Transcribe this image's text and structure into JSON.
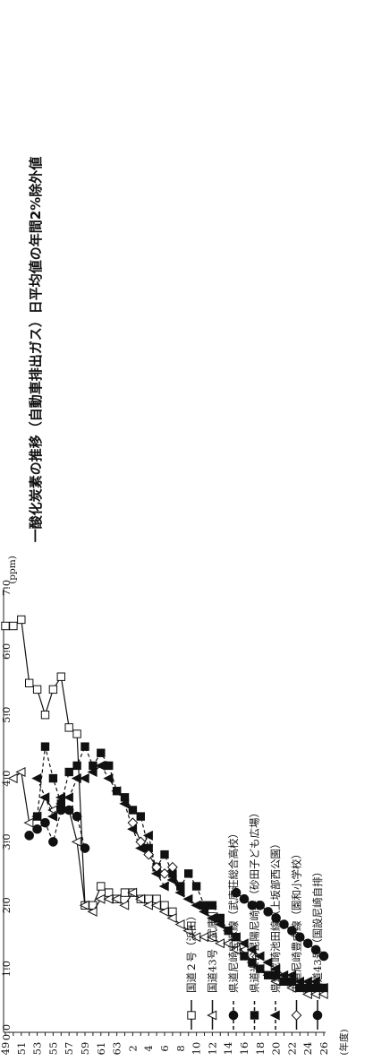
{
  "chart_data": {
    "type": "line",
    "title": "一酸化炭素の推移（自動車排出ガス）日平均値の年間2%除外値",
    "ylabel": "(ppm)",
    "xlabel": "(年度)",
    "ylim": [
      0,
      7
    ],
    "yticks": [
      "0.0",
      "1.0",
      "2.0",
      "3.0",
      "4.0",
      "5.0",
      "6.0",
      "7.0"
    ],
    "x_categories": [
      "49",
      "50",
      "51",
      "52",
      "53",
      "54",
      "55",
      "56",
      "57",
      "58",
      "59",
      "60",
      "61",
      "62",
      "63",
      "1",
      "2",
      "3",
      "4",
      "5",
      "6",
      "7",
      "8",
      "9",
      "10",
      "11",
      "12",
      "13",
      "14",
      "15",
      "16",
      "17",
      "18",
      "19",
      "20",
      "21",
      "22",
      "23",
      "24",
      "25",
      "26"
    ],
    "x_tick_labels": [
      "49",
      "51",
      "53",
      "55",
      "57",
      "59",
      "61",
      "63",
      "2",
      "4",
      "6",
      "8",
      "10",
      "12",
      "14",
      "16",
      "18",
      "20",
      "22",
      "24",
      "26"
    ],
    "grid": false,
    "legend_position": "right",
    "series": [
      {
        "name": "国道２号（浜田）",
        "marker": "square-open",
        "dash": false,
        "points": [
          [
            0,
            6.4
          ],
          [
            1,
            6.4
          ],
          [
            2,
            6.5
          ],
          [
            3,
            5.5
          ],
          [
            4,
            5.4
          ],
          [
            5,
            5.0
          ],
          [
            6,
            5.4
          ],
          [
            7,
            5.6
          ],
          [
            8,
            4.8
          ],
          [
            9,
            4.7
          ],
          [
            10,
            2.0
          ],
          [
            11,
            2.0
          ],
          [
            12,
            2.3
          ],
          [
            13,
            2.2
          ],
          [
            14,
            2.1
          ],
          [
            15,
            2.2
          ],
          [
            16,
            2.2
          ],
          [
            17,
            2.1
          ],
          [
            18,
            2.1
          ],
          [
            19,
            2.1
          ],
          [
            20,
            2.0
          ],
          [
            21,
            1.9
          ]
        ]
      },
      {
        "name": "国道43号（武庫川）",
        "marker": "triangle-open",
        "dash": false,
        "points": [
          [
            1,
            4.0
          ],
          [
            2,
            4.1
          ],
          [
            3,
            3.3
          ],
          [
            4,
            3.4
          ],
          [
            5,
            3.7
          ],
          [
            6,
            3.5
          ],
          [
            7,
            3.6
          ],
          [
            8,
            3.5
          ],
          [
            9,
            3.0
          ],
          [
            10,
            2.0
          ],
          [
            11,
            1.9
          ],
          [
            12,
            2.1
          ],
          [
            13,
            2.1
          ],
          [
            14,
            2.1
          ],
          [
            15,
            2.0
          ],
          [
            16,
            2.2
          ],
          [
            17,
            2.1
          ],
          [
            18,
            2.0
          ],
          [
            19,
            2.0
          ],
          [
            20,
            1.9
          ],
          [
            21,
            1.8
          ],
          [
            22,
            1.7
          ],
          [
            23,
            1.6
          ],
          [
            24,
            1.5
          ],
          [
            25,
            1.5
          ],
          [
            26,
            1.5
          ],
          [
            27,
            1.4
          ],
          [
            28,
            1.4
          ],
          [
            29,
            1.3
          ],
          [
            30,
            1.3
          ],
          [
            31,
            1.1
          ],
          [
            32,
            1.0
          ],
          [
            33,
            0.9
          ],
          [
            34,
            0.8
          ],
          [
            35,
            0.8
          ],
          [
            36,
            0.7
          ],
          [
            37,
            0.7
          ],
          [
            38,
            0.6
          ],
          [
            39,
            0.6
          ],
          [
            40,
            0.6
          ]
        ]
      },
      {
        "name": "県道尼崎宝塚線（武庫荘総合高校）",
        "marker": "circle-filled",
        "dash": true,
        "points": [
          [
            3,
            3.1
          ],
          [
            4,
            3.2
          ],
          [
            5,
            3.3
          ],
          [
            6,
            3.0
          ],
          [
            7,
            3.5
          ],
          [
            8,
            3.5
          ],
          [
            9,
            3.4
          ],
          [
            10,
            2.9
          ]
        ]
      },
      {
        "name": "県道米谷昆陽尼崎線（砂田子ども広場）",
        "marker": "square-filled",
        "dash": true,
        "points": [
          [
            4,
            3.4
          ],
          [
            5,
            4.5
          ],
          [
            6,
            4.0
          ],
          [
            7,
            3.6
          ],
          [
            8,
            4.1
          ],
          [
            9,
            4.2
          ],
          [
            10,
            4.5
          ],
          [
            11,
            4.2
          ],
          [
            12,
            4.4
          ],
          [
            13,
            4.2
          ],
          [
            14,
            3.8
          ],
          [
            15,
            3.7
          ],
          [
            16,
            3.5
          ],
          [
            17,
            3.4
          ],
          [
            18,
            2.9
          ],
          [
            19,
            2.6
          ],
          [
            20,
            2.8
          ],
          [
            21,
            2.5
          ],
          [
            22,
            2.3
          ],
          [
            23,
            2.5
          ],
          [
            24,
            2.3
          ],
          [
            25,
            2.0
          ],
          [
            26,
            2.0
          ],
          [
            27,
            1.8
          ],
          [
            28,
            1.6
          ],
          [
            29,
            1.5
          ],
          [
            30,
            1.2
          ],
          [
            31,
            1.1
          ],
          [
            32,
            1.0
          ],
          [
            33,
            0.9
          ],
          [
            34,
            0.9
          ],
          [
            35,
            0.8
          ],
          [
            36,
            0.8
          ],
          [
            37,
            0.7
          ],
          [
            38,
            0.7
          ],
          [
            39,
            0.7
          ],
          [
            40,
            0.7
          ]
        ]
      },
      {
        "name": "県道尼崎池田線（上坂部西公園）",
        "marker": "triangle-filled",
        "dash": true,
        "points": [
          [
            4,
            4.0
          ],
          [
            5,
            3.7
          ],
          [
            6,
            3.4
          ],
          [
            7,
            3.7
          ],
          [
            8,
            3.7
          ],
          [
            9,
            4.0
          ],
          [
            10,
            4.0
          ],
          [
            11,
            4.1
          ],
          [
            12,
            4.2
          ],
          [
            13,
            4.0
          ],
          [
            14,
            3.8
          ],
          [
            15,
            3.6
          ],
          [
            16,
            3.2
          ],
          [
            17,
            2.9
          ],
          [
            18,
            3.1
          ],
          [
            19,
            2.5
          ],
          [
            20,
            2.3
          ],
          [
            21,
            2.4
          ],
          [
            22,
            2.2
          ],
          [
            23,
            2.1
          ],
          [
            24,
            2.0
          ],
          [
            25,
            1.9
          ],
          [
            26,
            1.8
          ],
          [
            27,
            1.7
          ],
          [
            28,
            1.6
          ],
          [
            29,
            1.5
          ],
          [
            30,
            1.4
          ],
          [
            31,
            1.3
          ],
          [
            32,
            1.2
          ],
          [
            33,
            1.1
          ],
          [
            34,
            1.0
          ],
          [
            35,
            0.9
          ],
          [
            36,
            0.9
          ],
          [
            37,
            0.8
          ],
          [
            38,
            0.8
          ],
          [
            39,
            0.8
          ],
          [
            40,
            0.7
          ]
        ]
      },
      {
        "name": "市道尼崎豊中線（園和小学校）",
        "marker": "diamond-open",
        "dash": false,
        "points": [
          [
            16,
            3.3
          ],
          [
            17,
            3.0
          ],
          [
            18,
            2.8
          ],
          [
            19,
            2.6
          ],
          [
            20,
            2.5
          ],
          [
            21,
            2.6
          ]
        ]
      },
      {
        "name": "国道43号（国設尼崎自排）",
        "marker": "circle-filled",
        "dash": false,
        "points": [
          [
            29,
            2.2
          ],
          [
            30,
            2.1
          ],
          [
            31,
            2.0
          ],
          [
            32,
            2.0
          ],
          [
            33,
            1.9
          ],
          [
            34,
            1.8
          ],
          [
            35,
            1.7
          ],
          [
            36,
            1.6
          ],
          [
            37,
            1.5
          ],
          [
            38,
            1.4
          ],
          [
            39,
            1.3
          ],
          [
            40,
            1.2
          ]
        ]
      }
    ]
  }
}
